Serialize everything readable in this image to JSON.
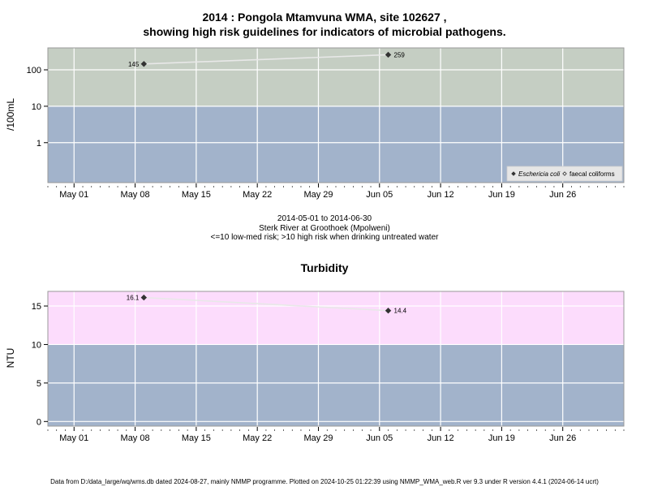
{
  "header": {
    "title_line1": "2014 : Pongola Mtamvuna WMA, site 102627 ,",
    "title_line2": "showing high risk guidelines for indicators of microbial pathogens."
  },
  "subtitle": {
    "date_range": "2014-05-01 to 2014-06-30",
    "site": "Sterk River at Groothoek (Mpolweni)",
    "note": "<=10 low-med risk; >10 high risk when drinking untreated water"
  },
  "footer": {
    "text": "Data from D:/data_large/wq/wms.db dated 2024-08-27, mainly NMMP programme. Plotted on 2024-10-25 01:22:39 using NMMP_WMA_web.R ver 9.3 under R version 4.4.1 (2024-06-14 ucrt)"
  },
  "colors": {
    "high_risk_micro": "#c5cec3",
    "low_risk": "#a2b3cb",
    "high_risk_turb": "#fcdcfc",
    "grid": "#ffffff",
    "line": "#e8e8e8",
    "point": "#333333"
  },
  "chart_data": [
    {
      "type": "scatter",
      "title": "",
      "ylabel": "/100mL",
      "xlabel": "",
      "y_scale": "log",
      "ylim": [
        0.08,
        400
      ],
      "xlim": [
        "2014-04-28",
        "2014-07-03"
      ],
      "threshold": 10,
      "y_ticks": [
        1,
        10,
        100
      ],
      "y_tick_labels": [
        "1",
        "10",
        "100"
      ],
      "x_ticks": [
        "2014-05-01",
        "2014-05-08",
        "2014-05-15",
        "2014-05-22",
        "2014-05-29",
        "2014-06-05",
        "2014-06-12",
        "2014-06-19",
        "2014-06-26"
      ],
      "x_tick_labels": [
        "May 01",
        "May 08",
        "May 15",
        "May 22",
        "May 29",
        "Jun 05",
        "Jun 12",
        "Jun 19",
        "Jun 26"
      ],
      "series": [
        {
          "name": "Eschericia coli",
          "marker": "filled-diamond",
          "points": [
            {
              "x": "2014-05-09",
              "y": 145,
              "label": "145"
            },
            {
              "x": "2014-06-06",
              "y": 259,
              "label": "259"
            }
          ]
        },
        {
          "name": "faecal coliforms",
          "marker": "open-diamond",
          "points": []
        }
      ],
      "legend_position": "bottom-right",
      "grid": true
    },
    {
      "type": "scatter",
      "title": "Turbidity",
      "ylabel": "NTU",
      "xlabel": "",
      "y_scale": "linear",
      "ylim": [
        -0.6,
        16.9
      ],
      "xlim": [
        "2014-04-28",
        "2014-07-03"
      ],
      "threshold": 10,
      "y_ticks": [
        0,
        5,
        10,
        15
      ],
      "y_tick_labels": [
        "0",
        "5",
        "10",
        "15"
      ],
      "x_ticks": [
        "2014-05-01",
        "2014-05-08",
        "2014-05-15",
        "2014-05-22",
        "2014-05-29",
        "2014-06-05",
        "2014-06-12",
        "2014-06-19",
        "2014-06-26"
      ],
      "x_tick_labels": [
        "May 01",
        "May 08",
        "May 15",
        "May 22",
        "May 29",
        "Jun 05",
        "Jun 12",
        "Jun 19",
        "Jun 26"
      ],
      "series": [
        {
          "marker": "filled-diamond",
          "points": [
            {
              "x": "2014-05-09",
              "y": 16.1,
              "label": "16.1"
            },
            {
              "x": "2014-06-06",
              "y": 14.4,
              "label": "14.4"
            }
          ]
        }
      ],
      "grid": true
    }
  ]
}
